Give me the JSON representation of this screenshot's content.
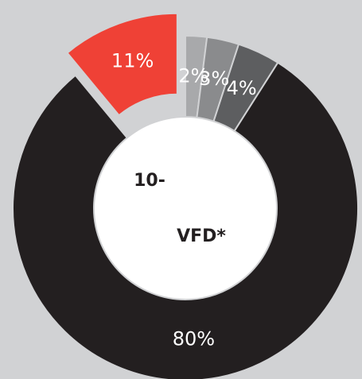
{
  "chart_data": {
    "type": "donut",
    "values": [
      2,
      3,
      4,
      80,
      11
    ],
    "value_labels": [
      "2%",
      "3%",
      "4%",
      "80%",
      "11%"
    ],
    "colors": [
      "#a8a9ab",
      "#8a8b8d",
      "#5d5e60",
      "#231f20",
      "#ef4136"
    ],
    "exploded": [
      false,
      false,
      false,
      false,
      true
    ],
    "annotations": [
      "10-",
      "VFD*"
    ]
  }
}
